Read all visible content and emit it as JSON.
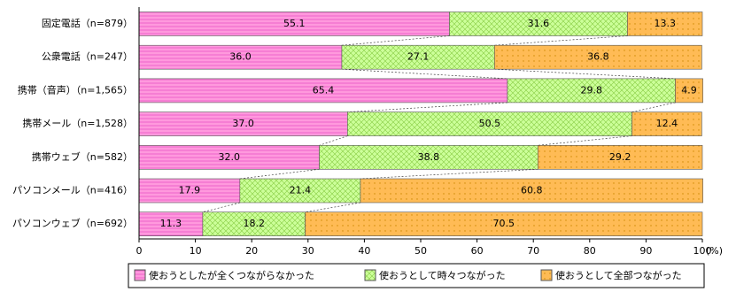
{
  "chart_data": {
    "type": "stacked-bar-horizontal",
    "categories": [
      "固定電話（n=879）",
      "公衆電話（n=247）",
      "携帯（音声）（n=1,565）",
      "携帯メール（n=1,528）",
      "携帯ウェブ（n=582）",
      "パソコンメール（n=416）",
      "パソコンウェブ（n=692）"
    ],
    "series": [
      {
        "name": "使おうとしたが全くつながらなかった",
        "color": "#ff99dd",
        "values": [
          55.1,
          36.0,
          65.4,
          37.0,
          32.0,
          17.9,
          11.3
        ],
        "value_labels": [
          "55.1",
          "36.0",
          "65.4",
          "37.0",
          "32.0",
          "17.9",
          "11.3"
        ]
      },
      {
        "name": "使おうとして時々つながった",
        "color": "#ccff99",
        "values": [
          31.6,
          27.1,
          29.8,
          50.5,
          38.8,
          21.4,
          18.2
        ],
        "value_labels": [
          "31.6",
          "27.1",
          "29.8",
          "50.5",
          "38.8",
          "21.4",
          "18.2"
        ]
      },
      {
        "name": "使おうとして全部つながった",
        "color": "#ffbb55",
        "values": [
          13.3,
          36.8,
          4.9,
          12.4,
          29.2,
          60.8,
          70.5
        ],
        "value_labels": [
          "13.3",
          "36.8",
          "4.9",
          "12.4",
          "29.2",
          "60.8",
          "70.5"
        ]
      }
    ],
    "xlim": [
      0,
      100
    ],
    "xticks": [
      0,
      10,
      20,
      30,
      40,
      50,
      60,
      70,
      80,
      90,
      100
    ],
    "x_unit": "(%)"
  }
}
